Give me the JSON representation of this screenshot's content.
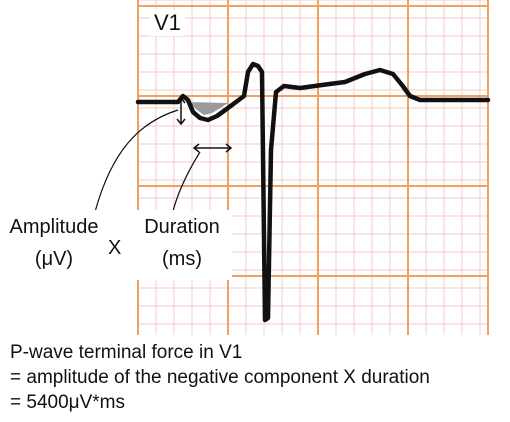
{
  "lead_label": "V1",
  "amplitude": {
    "line1": "Amplitude",
    "line2": "(μV)"
  },
  "times_sign": "X",
  "duration": {
    "line1": "Duration",
    "line2": "(ms)"
  },
  "formula": {
    "line1": "P-wave terminal force in V1",
    "line2": "= amplitude of the negative component X duration",
    "line3": "= 5400μV*ms"
  },
  "colors": {
    "grid_major": "#f0a060",
    "grid_minor": "#f8c8c8",
    "trace": "#111111",
    "shaded_area": "#9a9a9a"
  }
}
